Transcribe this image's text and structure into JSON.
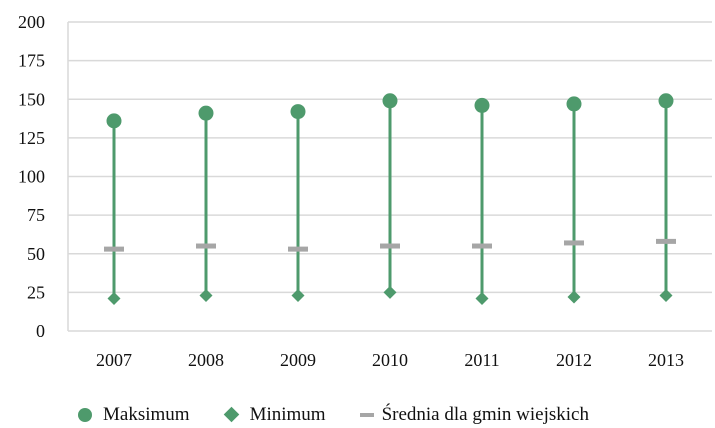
{
  "chart_data": {
    "type": "scatter",
    "categories": [
      "2007",
      "2008",
      "2009",
      "2010",
      "2011",
      "2012",
      "2013"
    ],
    "series": [
      {
        "name": "Maksimum",
        "marker": "circle",
        "color": "#4e9a6c",
        "values": [
          136,
          141,
          142,
          149,
          146,
          147,
          149
        ]
      },
      {
        "name": "Minimum",
        "marker": "diamond",
        "color": "#4e9a6c",
        "values": [
          21,
          23,
          23,
          25,
          21,
          22,
          23
        ]
      },
      {
        "name": "Średnia dla gmin wiejskich",
        "marker": "dash",
        "color": "#a6a6a6",
        "values": [
          53,
          55,
          53,
          55,
          55,
          57,
          58
        ]
      }
    ],
    "ylim": [
      0,
      200
    ],
    "yticks": [
      "0",
      "25",
      "50",
      "75",
      "100",
      "125",
      "150",
      "175",
      "200"
    ],
    "grid": true,
    "legend_position": "bottom",
    "range_line_color": "#4e9a6c",
    "grid_color": "#d9d9d9"
  }
}
